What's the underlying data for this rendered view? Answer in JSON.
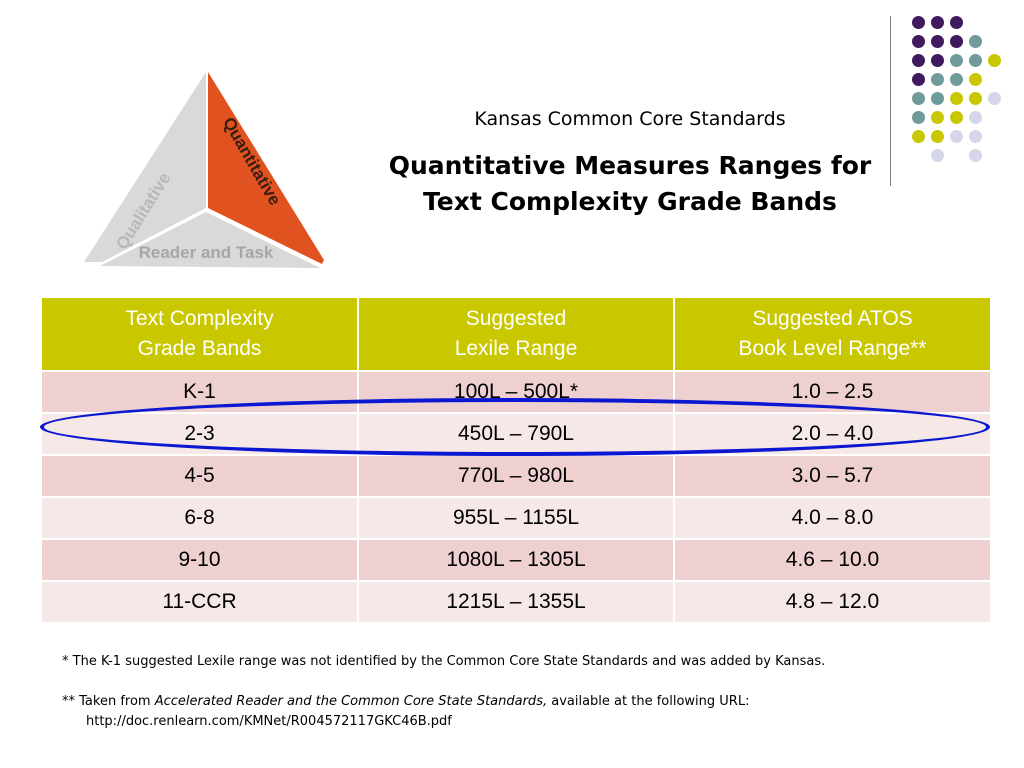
{
  "graphic": {
    "qualitative_label": "Qualitative",
    "quantitative_label": "Quantitative",
    "reader_task_label": "Reader and Task",
    "colors": {
      "qualitative": "#d9d9d9",
      "quantitative": "#e0521f",
      "reader_task": "#d9d9d9"
    }
  },
  "header": {
    "subtitle": "Kansas Common Core Standards",
    "title_line1": "Quantitative Measures Ranges for",
    "title_line2": "Text Complexity Grade Bands"
  },
  "decor": {
    "colors": {
      "purple": "#3f1a5e",
      "teal": "#6f9b9a",
      "yellow": "#c9c800",
      "lavender": "#d6d6ea"
    }
  },
  "table": {
    "headers": [
      {
        "line1": "Text Complexity",
        "line2": "Grade Bands"
      },
      {
        "line1": "Suggested",
        "line2": "Lexile Range"
      },
      {
        "line1": "Suggested ATOS",
        "line2": "Book Level Range**"
      }
    ],
    "rows": [
      [
        "K-1",
        "100L – 500L*",
        "1.0 – 2.5"
      ],
      [
        "2-3",
        "450L – 790L",
        "2.0 – 4.0"
      ],
      [
        "4-5",
        "770L – 980L",
        "3.0 – 5.7"
      ],
      [
        "6-8",
        "955L – 1155L",
        "4.0 – 8.0"
      ],
      [
        "9-10",
        "1080L – 1305L",
        "4.6 – 10.0"
      ],
      [
        "11-CCR",
        "1215L – 1355L",
        "4.8 – 12.0"
      ]
    ],
    "header_color": "#c9c800",
    "highlight_color": "#0b17d0"
  },
  "footnotes": {
    "note1": "* The K-1 suggested Lexile range was not identified by the Common Core State Standards and was added by Kansas.",
    "note2_prefix": "** Taken from ",
    "note2_title": "Accelerated Reader and the Common Core State Standards,",
    "note2_suffix": " available at the following URL:",
    "note2_url": "http://doc.renlearn.com/KMNet/R004572117GKC46B.pdf"
  }
}
